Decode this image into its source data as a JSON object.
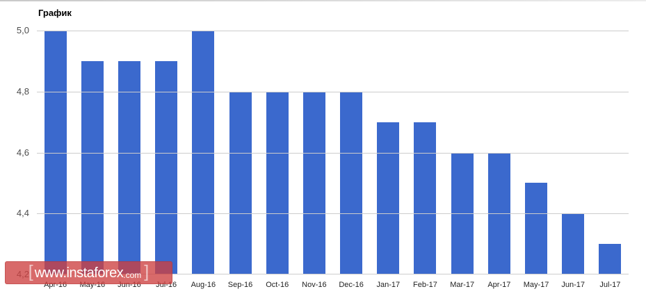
{
  "chart_data": {
    "type": "bar",
    "title": "График",
    "categories": [
      "Apr-16",
      "May-16",
      "Jun-16",
      "Jul-16",
      "Aug-16",
      "Sep-16",
      "Oct-16",
      "Nov-16",
      "Dec-16",
      "Jan-17",
      "Feb-17",
      "Mar-17",
      "Apr-17",
      "May-17",
      "Jun-17",
      "Jul-17"
    ],
    "values": [
      5.0,
      4.9,
      4.9,
      4.9,
      5.0,
      4.8,
      4.8,
      4.8,
      4.8,
      4.7,
      4.7,
      4.6,
      4.6,
      4.5,
      4.4,
      4.3
    ],
    "xlabel": "",
    "ylabel": "",
    "ylim": [
      4.2,
      5.0
    ],
    "y_ticks": [
      {
        "value": 5.0,
        "label": "5,0"
      },
      {
        "value": 4.8,
        "label": "4,8"
      },
      {
        "value": 4.6,
        "label": "4,6"
      },
      {
        "value": 4.4,
        "label": "4,4"
      },
      {
        "value": 4.2,
        "label": "4,2"
      }
    ],
    "grid": true,
    "legend_position": "none",
    "bar_color": "#3b69cd",
    "gridline_color": "#cccccc"
  },
  "watermark": {
    "open_bracket": "[",
    "site": "www.instaforex",
    "tld": ".com",
    "close_bracket": "]",
    "background_color": "rgba(205,64,64,0.78)"
  }
}
